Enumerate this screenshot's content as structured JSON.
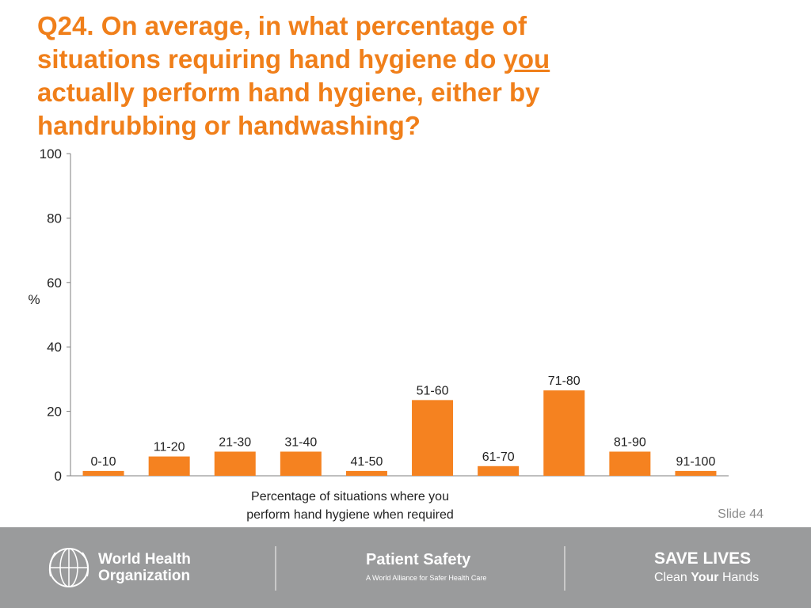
{
  "title": {
    "line1": "Q24. On average, in what percentage of",
    "line2_pre": "situations requiring hand hygiene do ",
    "line2_u": "you",
    "line3": "actually perform hand hygiene, either by",
    "line4": "handrubbing or handwashing?"
  },
  "slide_label": "Slide 44",
  "footer": {
    "who_line1": "World Health",
    "who_line2": "Organization",
    "ps_title": "Patient Safety",
    "ps_sub": "A World Alliance for Safer Health Care",
    "sl_line1": "SAVE LIVES",
    "sl_line2_a": "Clean ",
    "sl_line2_b": "Your",
    "sl_line2_c": " Hands"
  },
  "colors": {
    "accent": "#f07f1a",
    "bar": "#f58220",
    "footer": "#9a9b9c"
  },
  "chart_data": {
    "type": "bar",
    "categories": [
      "0-10",
      "11-20",
      "21-30",
      "31-40",
      "41-50",
      "51-60",
      "61-70",
      "71-80",
      "81-90",
      "91-100"
    ],
    "values": [
      1.5,
      6,
      7.5,
      7.5,
      1.5,
      23.5,
      3,
      26.5,
      7.5,
      1.5
    ],
    "ylabel": "%",
    "xlabel": "Percentage of situations where you perform hand hygiene when required",
    "ylim": [
      0,
      100
    ],
    "yticks": [
      0,
      20,
      40,
      60,
      80,
      100
    ],
    "data_labels": "category name above each bar",
    "grid": false
  }
}
